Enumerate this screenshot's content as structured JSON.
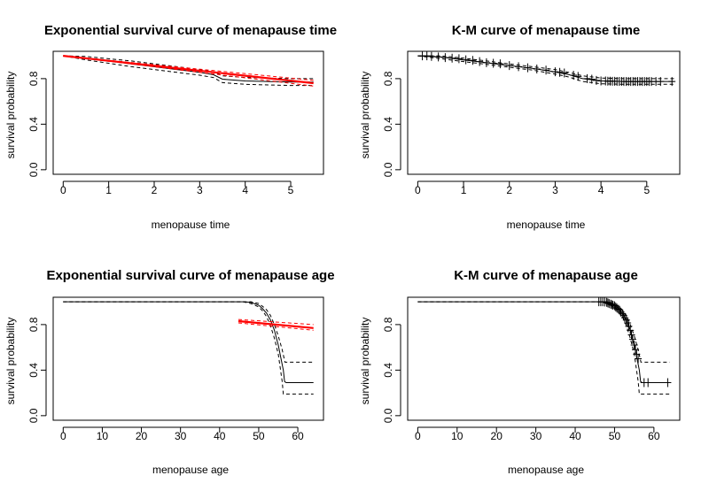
{
  "chart_data": [
    {
      "type": "line",
      "title": "Exponential survival curve of menapause time",
      "xlabel": "menopause time",
      "ylabel": "survival probability",
      "xlim": [
        0,
        5.5
      ],
      "ylim": [
        0,
        1
      ],
      "xticks": [
        0,
        1,
        2,
        3,
        4,
        5
      ],
      "yticks": [
        "0.0",
        "0.4",
        "0.8"
      ],
      "grid": false,
      "series": [
        {
          "role": "km-estimate",
          "color": "#000000",
          "dashed": false,
          "x": [
            0,
            0.5,
            1.0,
            1.5,
            2.0,
            2.5,
            3.0,
            3.3,
            3.5,
            4.0,
            4.5,
            5.0,
            5.5
          ],
          "y": [
            1.0,
            0.98,
            0.955,
            0.93,
            0.905,
            0.88,
            0.855,
            0.835,
            0.795,
            0.78,
            0.775,
            0.77,
            0.77
          ]
        },
        {
          "role": "km-upper",
          "color": "#000000",
          "dashed": true,
          "x": [
            0,
            0.5,
            1.0,
            1.5,
            2.0,
            2.5,
            3.0,
            3.3,
            3.5,
            4.0,
            4.5,
            5.0,
            5.5
          ],
          "y": [
            1.0,
            0.995,
            0.975,
            0.955,
            0.93,
            0.905,
            0.88,
            0.86,
            0.825,
            0.81,
            0.805,
            0.8,
            0.8
          ]
        },
        {
          "role": "km-lower",
          "color": "#000000",
          "dashed": true,
          "x": [
            0,
            0.5,
            1.0,
            1.5,
            2.0,
            2.5,
            3.0,
            3.3,
            3.5,
            4.0,
            4.5,
            5.0,
            5.5
          ],
          "y": [
            1.0,
            0.965,
            0.935,
            0.905,
            0.88,
            0.855,
            0.83,
            0.81,
            0.765,
            0.75,
            0.745,
            0.74,
            0.74
          ]
        },
        {
          "role": "exponential-fit",
          "color": "#ff0000",
          "dashed": false,
          "lw": 2.2,
          "x": [
            0,
            5.5
          ],
          "y": [
            1.0,
            0.76
          ]
        },
        {
          "role": "exponential-upper",
          "color": "#ff0000",
          "dashed": true,
          "x": [
            0,
            5.5
          ],
          "y": [
            1.0,
            0.785
          ]
        },
        {
          "role": "exponential-lower",
          "color": "#ff0000",
          "dashed": true,
          "x": [
            0,
            5.5
          ],
          "y": [
            1.0,
            0.735
          ]
        }
      ]
    },
    {
      "type": "line",
      "title": "K-M curve of menapause time",
      "xlabel": "menopause time",
      "ylabel": "survival probability",
      "xlim": [
        0,
        5.5
      ],
      "ylim": [
        0,
        1
      ],
      "xticks": [
        0,
        1,
        2,
        3,
        4,
        5
      ],
      "yticks": [
        "0.0",
        "0.4",
        "0.8"
      ],
      "grid": false,
      "series": [
        {
          "role": "km-estimate",
          "color": "#000000",
          "dashed": false,
          "x": [
            0,
            0.5,
            1.0,
            1.5,
            2.0,
            2.5,
            3.0,
            3.3,
            3.6,
            4.0,
            4.5,
            5.0,
            5.6
          ],
          "y": [
            1.0,
            0.99,
            0.965,
            0.94,
            0.915,
            0.89,
            0.86,
            0.835,
            0.8,
            0.78,
            0.775,
            0.775,
            0.775
          ]
        },
        {
          "role": "km-upper",
          "color": "#000000",
          "dashed": true,
          "x": [
            0,
            0.5,
            1.0,
            1.5,
            2.0,
            2.5,
            3.0,
            3.3,
            3.6,
            4.0,
            4.5,
            5.0,
            5.6
          ],
          "y": [
            1.0,
            1.0,
            0.98,
            0.955,
            0.93,
            0.905,
            0.88,
            0.855,
            0.825,
            0.805,
            0.8,
            0.8,
            0.8
          ]
        },
        {
          "role": "km-lower",
          "color": "#000000",
          "dashed": true,
          "x": [
            0,
            0.5,
            1.0,
            1.5,
            2.0,
            2.5,
            3.0,
            3.3,
            3.6,
            4.0,
            4.5,
            5.0,
            5.6
          ],
          "y": [
            1.0,
            0.975,
            0.95,
            0.925,
            0.9,
            0.875,
            0.84,
            0.815,
            0.775,
            0.755,
            0.75,
            0.75,
            0.75
          ]
        }
      ],
      "censor_marks": {
        "color": "#000000",
        "x": [
          0.1,
          0.2,
          0.3,
          0.45,
          0.6,
          0.75,
          0.9,
          1.05,
          1.2,
          1.35,
          1.5,
          1.65,
          1.8,
          2.0,
          2.2,
          2.4,
          2.6,
          2.8,
          3.0,
          3.1,
          3.2,
          3.4,
          3.5,
          3.7,
          3.8,
          3.9,
          4.0,
          4.1,
          4.15,
          4.2,
          4.25,
          4.3,
          4.35,
          4.4,
          4.45,
          4.5,
          4.55,
          4.6,
          4.65,
          4.7,
          4.75,
          4.8,
          4.85,
          4.9,
          4.95,
          5.0,
          5.05,
          5.1,
          5.2,
          5.3,
          5.55
        ],
        "y": [
          1.0,
          1.0,
          0.995,
          0.99,
          0.985,
          0.98,
          0.975,
          0.965,
          0.96,
          0.95,
          0.94,
          0.935,
          0.93,
          0.915,
          0.905,
          0.895,
          0.885,
          0.875,
          0.86,
          0.855,
          0.85,
          0.83,
          0.82,
          0.8,
          0.795,
          0.785,
          0.78,
          0.78,
          0.778,
          0.778,
          0.777,
          0.777,
          0.776,
          0.776,
          0.776,
          0.775,
          0.775,
          0.775,
          0.775,
          0.775,
          0.775,
          0.775,
          0.775,
          0.775,
          0.775,
          0.775,
          0.775,
          0.775,
          0.775,
          0.775,
          0.775
        ]
      }
    },
    {
      "type": "line",
      "title": "Exponential survival curve of menapause age",
      "xlabel": "menopause age",
      "ylabel": "survival probability",
      "xlim": [
        0,
        64
      ],
      "ylim": [
        0,
        1
      ],
      "xticks": [
        0,
        10,
        20,
        30,
        40,
        50,
        60
      ],
      "yticks": [
        "0.0",
        "0.4",
        "0.8"
      ],
      "grid": false,
      "series": [
        {
          "role": "km-estimate",
          "color": "#000000",
          "dashed": false,
          "x": [
            0,
            46,
            48,
            50,
            51,
            52,
            53,
            54,
            55,
            55.7,
            56.3,
            56.6,
            57,
            64
          ],
          "y": [
            1.0,
            1.0,
            0.995,
            0.97,
            0.94,
            0.9,
            0.84,
            0.75,
            0.62,
            0.5,
            0.4,
            0.3,
            0.29,
            0.29
          ]
        },
        {
          "role": "km-upper",
          "color": "#000000",
          "dashed": true,
          "x": [
            0,
            46,
            48,
            50,
            51,
            52,
            53,
            54,
            55,
            56,
            56.7,
            57,
            64
          ],
          "y": [
            1.0,
            1.0,
            1.0,
            0.985,
            0.96,
            0.93,
            0.88,
            0.8,
            0.7,
            0.58,
            0.47,
            0.47,
            0.47
          ]
        },
        {
          "role": "km-lower",
          "color": "#000000",
          "dashed": true,
          "x": [
            0,
            46,
            48,
            50,
            51,
            52,
            53,
            54,
            55,
            56,
            56.3,
            56.7,
            64
          ],
          "y": [
            1.0,
            1.0,
            0.985,
            0.955,
            0.92,
            0.87,
            0.79,
            0.68,
            0.54,
            0.3,
            0.19,
            0.19,
            0.19
          ]
        },
        {
          "role": "exponential-fit",
          "color": "#ff0000",
          "dashed": false,
          "lw": 2.2,
          "x": [
            44.8,
            64
          ],
          "y": [
            0.83,
            0.77
          ]
        },
        {
          "role": "exponential-upper",
          "color": "#ff0000",
          "dashed": true,
          "x": [
            44.8,
            64
          ],
          "y": [
            0.845,
            0.8
          ]
        },
        {
          "role": "exponential-lower",
          "color": "#ff0000",
          "dashed": true,
          "x": [
            44.8,
            64
          ],
          "y": [
            0.815,
            0.75
          ]
        }
      ]
    },
    {
      "type": "line",
      "title": "K-M curve of menapause age",
      "xlabel": "menopause age",
      "ylabel": "survival probability",
      "xlim": [
        0,
        64
      ],
      "ylim": [
        0,
        1
      ],
      "xticks": [
        0,
        10,
        20,
        30,
        40,
        50,
        60
      ],
      "yticks": [
        "0.0",
        "0.4",
        "0.8"
      ],
      "grid": false,
      "series": [
        {
          "role": "km-estimate",
          "color": "#000000",
          "dashed": false,
          "x": [
            0,
            46,
            48,
            50,
            51,
            52,
            53,
            54,
            55,
            55.7,
            56.3,
            56.6,
            57,
            64
          ],
          "y": [
            1.0,
            1.0,
            0.995,
            0.97,
            0.94,
            0.9,
            0.84,
            0.75,
            0.62,
            0.5,
            0.4,
            0.3,
            0.29,
            0.29
          ]
        },
        {
          "role": "km-upper",
          "color": "#000000",
          "dashed": true,
          "x": [
            0,
            46,
            48,
            50,
            51,
            52,
            53,
            54,
            55,
            56,
            56.7,
            57,
            64
          ],
          "y": [
            1.0,
            1.0,
            1.0,
            0.985,
            0.96,
            0.93,
            0.88,
            0.8,
            0.7,
            0.58,
            0.47,
            0.47,
            0.47
          ]
        },
        {
          "role": "km-lower",
          "color": "#000000",
          "dashed": true,
          "x": [
            0,
            46,
            48,
            50,
            51,
            52,
            53,
            54,
            55,
            56,
            56.3,
            56.7,
            64
          ],
          "y": [
            1.0,
            1.0,
            0.985,
            0.955,
            0.92,
            0.87,
            0.79,
            0.68,
            0.54,
            0.3,
            0.19,
            0.19,
            0.19
          ]
        }
      ],
      "censor_marks": {
        "color": "#000000",
        "x": [
          46,
          46.5,
          47,
          47.5,
          48,
          48.3,
          48.6,
          49,
          49.3,
          49.6,
          50,
          50.3,
          50.6,
          51,
          51.3,
          51.6,
          52,
          52.3,
          52.6,
          53,
          53.3,
          53.6,
          54,
          54.3,
          54.6,
          55,
          55.3,
          55.6,
          56,
          57.5,
          58.5,
          63.5
        ],
        "y": [
          1.0,
          1.0,
          1.0,
          0.998,
          0.995,
          0.99,
          0.985,
          0.98,
          0.975,
          0.97,
          0.965,
          0.955,
          0.945,
          0.935,
          0.925,
          0.91,
          0.895,
          0.88,
          0.86,
          0.84,
          0.815,
          0.785,
          0.75,
          0.71,
          0.67,
          0.62,
          0.58,
          0.54,
          0.5,
          0.29,
          0.29,
          0.29
        ]
      }
    }
  ]
}
